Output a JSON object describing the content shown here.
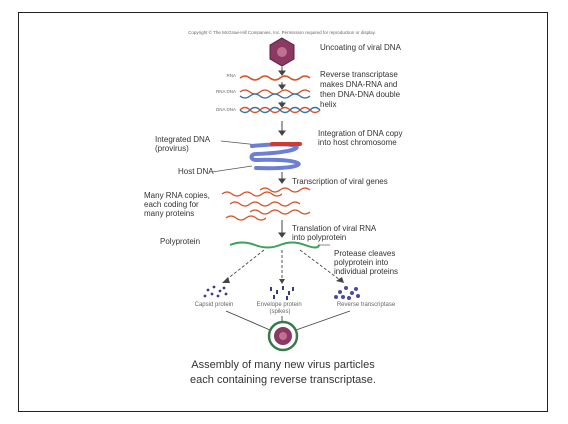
{
  "copyright": "Copyright © The McGraw-Hill Companies, Inc. Permission required for reproduction or display.",
  "steps": [
    "Uncoating of viral DNA",
    "Reverse transcriptase makes DNA-RNA and then DNA-DNA double helix",
    "Integration of DNA copy into host chromosome",
    "Transcription of viral genes",
    "Translation of viral RNA into polyprotein",
    "Protease cleaves polyprotein into individual proteins"
  ],
  "labels": {
    "integrated_dna": "Integrated DNA (provirus)",
    "host_dna": "Host DNA",
    "many_rna": "Many RNA copies, each coding for many proteins",
    "polyprotein": "Polyprotein",
    "strand_rna": "RNA",
    "strand_rna_dna": "RNA DNA",
    "strand_dna_dna": "DNA DNA"
  },
  "products": [
    "Capsid protein",
    "Envelope protein (spikes)",
    "Reverse transcriptase"
  ],
  "caption": [
    "Assembly of many new virus particles",
    "each containing reverse transcriptase."
  ],
  "colors": {
    "virus": "#8a3a62",
    "rna": "#d2552a",
    "dna": "#3a6fa0",
    "host_dna": "#6b7fd6",
    "integrated": "#d23a2a",
    "polyprotein": "#3aa05a",
    "protein": "#3b3a8a"
  }
}
